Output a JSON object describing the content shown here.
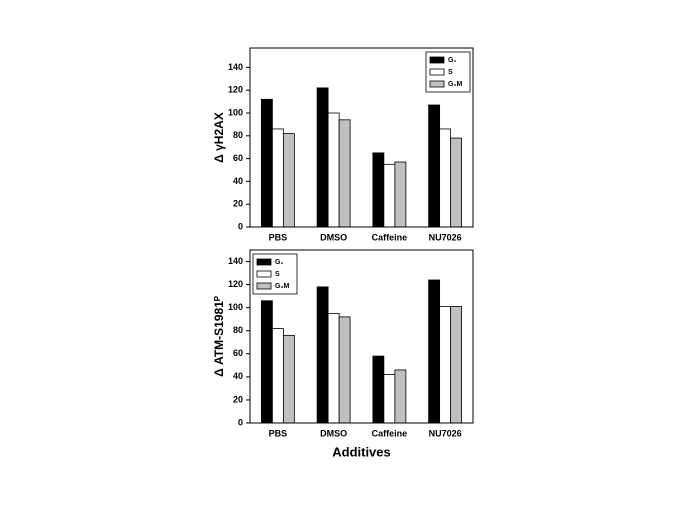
{
  "chart_data": [
    {
      "type": "bar",
      "ylabel": "Δ γH2AX",
      "categories": [
        "PBS",
        "DMSO",
        "Caffeine",
        "NU7026"
      ],
      "series": [
        {
          "name": "G₁",
          "color": "#000000",
          "values": [
            112,
            122,
            65,
            107
          ]
        },
        {
          "name": "S",
          "color": "#ffffff",
          "values": [
            86,
            100,
            55,
            86
          ]
        },
        {
          "name": "G₂M",
          "color": "#c0c0c0",
          "values": [
            82,
            94,
            57,
            78
          ]
        }
      ],
      "ylim": [
        0,
        157
      ],
      "yticks": [
        0,
        20,
        40,
        60,
        80,
        100,
        120,
        140
      ],
      "legend": "upper right"
    },
    {
      "type": "bar",
      "ylabel": "Δ ATM-S1981ᴾ",
      "xlabel": "Additives",
      "categories": [
        "PBS",
        "DMSO",
        "Caffeine",
        "NU7026"
      ],
      "series": [
        {
          "name": "G₁",
          "color": "#000000",
          "values": [
            106,
            118,
            58,
            124
          ]
        },
        {
          "name": "S",
          "color": "#ffffff",
          "values": [
            82,
            95,
            42,
            101
          ]
        },
        {
          "name": "G₂M",
          "color": "#c0c0c0",
          "values": [
            76,
            92,
            46,
            101
          ]
        }
      ],
      "ylim": [
        0,
        150
      ],
      "yticks": [
        0,
        20,
        40,
        60,
        80,
        100,
        120,
        140
      ],
      "legend": "upper left"
    }
  ]
}
